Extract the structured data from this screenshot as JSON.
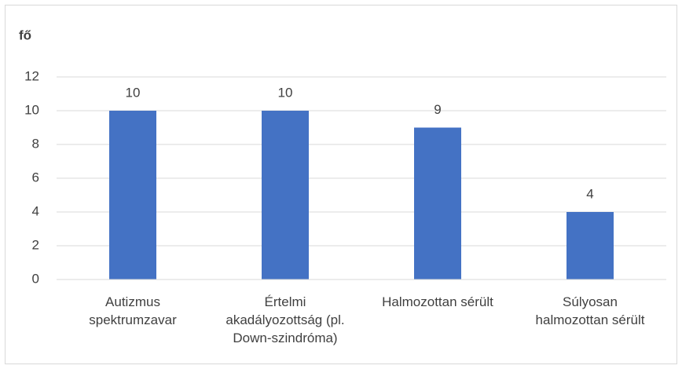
{
  "chart_data": {
    "type": "bar",
    "ylabel": "fő",
    "categories": [
      "Autizmus spektrumzavar",
      "Értelmi akadályozottság (pl. Down-szindróma)",
      "Halmozottan sérült",
      "Súlyosan halmozottan sérült"
    ],
    "values": [
      10,
      10,
      9,
      4
    ],
    "color": "#4472c4",
    "ylim": [
      0,
      12
    ],
    "yticks": [
      0,
      2,
      4,
      6,
      8,
      10,
      12
    ],
    "grid": true
  }
}
